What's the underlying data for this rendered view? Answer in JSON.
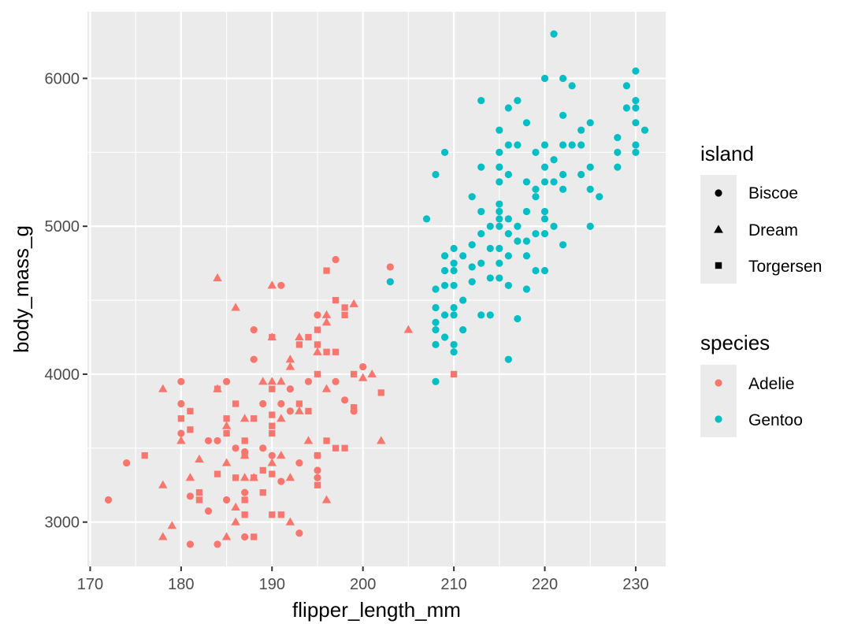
{
  "chart_data": {
    "type": "scatter",
    "title": "",
    "xlabel": "flipper_length_mm",
    "ylabel": "body_mass_g",
    "xlim": [
      169.7,
      233.3
    ],
    "ylim": [
      2700,
      6450
    ],
    "x_ticks": [
      170,
      180,
      190,
      200,
      210,
      220,
      230
    ],
    "y_ticks": [
      3000,
      4000,
      5000,
      6000
    ],
    "grid": true,
    "panel_background": "#ebebeb",
    "gridline_color": "#ffffff",
    "legends": {
      "island": {
        "title": "island",
        "entries": [
          {
            "label": "Biscoe",
            "shape": "circle"
          },
          {
            "label": "Dream",
            "shape": "triangle"
          },
          {
            "label": "Torgersen",
            "shape": "square"
          }
        ]
      },
      "species": {
        "title": "species",
        "entries": [
          {
            "label": "Adelie",
            "color": "#F8766D"
          },
          {
            "label": "Gentoo",
            "color": "#00BFC4"
          }
        ]
      }
    },
    "legend_position": "right",
    "series": [
      {
        "name": "Adelie",
        "color": "#F8766D",
        "points": [
          [
            172,
            3150,
            "Biscoe"
          ],
          [
            174,
            3400,
            "Biscoe"
          ],
          [
            176,
            3450,
            "Torgersen"
          ],
          [
            178,
            3900,
            "Dream"
          ],
          [
            178,
            3250,
            "Dream"
          ],
          [
            178,
            2900,
            "Dream"
          ],
          [
            179,
            2975,
            "Dream"
          ],
          [
            180,
            3950,
            "Biscoe"
          ],
          [
            180,
            3800,
            "Biscoe"
          ],
          [
            180,
            3700,
            "Torgersen"
          ],
          [
            180,
            3600,
            "Biscoe"
          ],
          [
            180,
            3550,
            "Dream"
          ],
          [
            181,
            3750,
            "Torgersen"
          ],
          [
            181,
            3625,
            "Torgersen"
          ],
          [
            181,
            3300,
            "Dream"
          ],
          [
            181,
            3175,
            "Biscoe"
          ],
          [
            181,
            2850,
            "Biscoe"
          ],
          [
            182,
            3200,
            "Torgersen"
          ],
          [
            182,
            3425,
            "Dream"
          ],
          [
            182,
            3150,
            "Torgersen"
          ],
          [
            183,
            3550,
            "Biscoe"
          ],
          [
            183,
            3075,
            "Biscoe"
          ],
          [
            184,
            4650,
            "Dream"
          ],
          [
            184,
            3900,
            "Dream"
          ],
          [
            184,
            3900,
            "Torgersen"
          ],
          [
            184,
            3550,
            "Biscoe"
          ],
          [
            184,
            3325,
            "Torgersen"
          ],
          [
            184,
            2850,
            "Biscoe"
          ],
          [
            185,
            3950,
            "Biscoe"
          ],
          [
            185,
            3650,
            "Dream"
          ],
          [
            185,
            3700,
            "Torgersen"
          ],
          [
            185,
            3600,
            "Torgersen"
          ],
          [
            185,
            3400,
            "Dream"
          ],
          [
            185,
            3150,
            "Biscoe"
          ],
          [
            185,
            2900,
            "Dream"
          ],
          [
            186,
            4450,
            "Dream"
          ],
          [
            186,
            3800,
            "Torgersen"
          ],
          [
            186,
            3500,
            "Biscoe"
          ],
          [
            186,
            3300,
            "Torgersen"
          ],
          [
            186,
            3100,
            "Dream"
          ],
          [
            186,
            3000,
            "Dream"
          ],
          [
            187,
            3700,
            "Dream"
          ],
          [
            187,
            3550,
            "Torgersen"
          ],
          [
            187,
            3450,
            "Dream"
          ],
          [
            187,
            3450,
            "Torgersen"
          ],
          [
            187,
            3300,
            "Dream"
          ],
          [
            187,
            3200,
            "Biscoe"
          ],
          [
            187,
            3150,
            "Torgersen"
          ],
          [
            187,
            3050,
            "Torgersen"
          ],
          [
            187,
            2900,
            "Biscoe"
          ],
          [
            187,
            3475,
            "Biscoe"
          ],
          [
            188,
            4300,
            "Biscoe"
          ],
          [
            188,
            4100,
            "Biscoe"
          ],
          [
            188,
            3700,
            "Torgersen"
          ],
          [
            188,
            3300,
            "Dream"
          ],
          [
            188,
            3300,
            "Torgersen"
          ],
          [
            188,
            2900,
            "Torgersen"
          ],
          [
            189,
            3950,
            "Dream"
          ],
          [
            189,
            3800,
            "Biscoe"
          ],
          [
            189,
            3500,
            "Biscoe"
          ],
          [
            189,
            3350,
            "Torgersen"
          ],
          [
            189,
            3200,
            "Torgersen"
          ],
          [
            190,
            4600,
            "Dream"
          ],
          [
            190,
            4250,
            "Torgersen"
          ],
          [
            190,
            4250,
            "Dream"
          ],
          [
            190,
            3950,
            "Dream"
          ],
          [
            190,
            3900,
            "Torgersen"
          ],
          [
            190,
            3725,
            "Torgersen"
          ],
          [
            190,
            3650,
            "Torgersen"
          ],
          [
            190,
            3600,
            "Torgersen"
          ],
          [
            190,
            3450,
            "Biscoe"
          ],
          [
            190,
            3400,
            "Dream"
          ],
          [
            190,
            3325,
            "Torgersen"
          ],
          [
            190,
            3050,
            "Torgersen"
          ],
          [
            191,
            4600,
            "Biscoe"
          ],
          [
            191,
            3950,
            "Dream"
          ],
          [
            191,
            3800,
            "Biscoe"
          ],
          [
            191,
            3700,
            "Dream"
          ],
          [
            191,
            3450,
            "Dream"
          ],
          [
            191,
            3275,
            "Biscoe"
          ],
          [
            191,
            3050,
            "Torgersen"
          ],
          [
            192,
            4100,
            "Dream"
          ],
          [
            192,
            4050,
            "Dream"
          ],
          [
            192,
            3900,
            "Biscoe"
          ],
          [
            192,
            3750,
            "Biscoe"
          ],
          [
            192,
            3300,
            "Dream"
          ],
          [
            192,
            3000,
            "Dream"
          ],
          [
            193,
            4250,
            "Dream"
          ],
          [
            193,
            4200,
            "Torgersen"
          ],
          [
            193,
            3750,
            "Dream"
          ],
          [
            193,
            3800,
            "Torgersen"
          ],
          [
            193,
            3400,
            "Biscoe"
          ],
          [
            193,
            2925,
            "Biscoe"
          ],
          [
            194,
            4250,
            "Torgersen"
          ],
          [
            194,
            3950,
            "Biscoe"
          ],
          [
            194,
            3750,
            "Torgersen"
          ],
          [
            194,
            3550,
            "Dream"
          ],
          [
            195,
            4400,
            "Biscoe"
          ],
          [
            195,
            4300,
            "Torgersen"
          ],
          [
            195,
            4150,
            "Dream"
          ],
          [
            195,
            4000,
            "Torgersen"
          ],
          [
            195,
            3450,
            "Torgersen"
          ],
          [
            195,
            3450,
            "Biscoe"
          ],
          [
            195,
            3350,
            "Biscoe"
          ],
          [
            195,
            3300,
            "Biscoe"
          ],
          [
            195,
            3250,
            "Torgersen"
          ],
          [
            195,
            4200,
            "Torgersen"
          ],
          [
            196,
            4700,
            "Torgersen"
          ],
          [
            196,
            4400,
            "Dream"
          ],
          [
            196,
            4350,
            "Dream"
          ],
          [
            196,
            4150,
            "Torgersen"
          ],
          [
            196,
            3900,
            "Dream"
          ],
          [
            196,
            3550,
            "Torgersen"
          ],
          [
            196,
            3150,
            "Dream"
          ],
          [
            197,
            4775,
            "Biscoe"
          ],
          [
            197,
            4500,
            "Torgersen"
          ],
          [
            197,
            4150,
            "Torgersen"
          ],
          [
            197,
            3950,
            "Biscoe"
          ],
          [
            197,
            3500,
            "Torgersen"
          ],
          [
            198,
            4450,
            "Torgersen"
          ],
          [
            198,
            4400,
            "Torgersen"
          ],
          [
            198,
            3825,
            "Biscoe"
          ],
          [
            198,
            3500,
            "Torgersen"
          ],
          [
            199,
            4475,
            "Dream"
          ],
          [
            199,
            4000,
            "Torgersen"
          ],
          [
            199,
            3775,
            "Torgersen"
          ],
          [
            199,
            3750,
            "Biscoe"
          ],
          [
            200,
            4050,
            "Biscoe"
          ],
          [
            200,
            3975,
            "Dream"
          ],
          [
            201,
            4000,
            "Dream"
          ],
          [
            202,
            3875,
            "Torgersen"
          ],
          [
            202,
            3550,
            "Dream"
          ],
          [
            203,
            4725,
            "Biscoe"
          ],
          [
            205,
            4300,
            "Dream"
          ],
          [
            210,
            4000,
            "Torgersen"
          ]
        ]
      },
      {
        "name": "Gentoo",
        "color": "#00BFC4",
        "points": [
          [
            203,
            4625
          ],
          [
            207,
            5050
          ],
          [
            208,
            5350
          ],
          [
            208,
            4575
          ],
          [
            208,
            4450
          ],
          [
            208,
            4350
          ],
          [
            208,
            4300
          ],
          [
            208,
            4200
          ],
          [
            208,
            3950
          ],
          [
            209,
            5500
          ],
          [
            209,
            4800
          ],
          [
            209,
            4700
          ],
          [
            209,
            4600
          ],
          [
            209,
            4400
          ],
          [
            209,
            4250
          ],
          [
            210,
            4850
          ],
          [
            210,
            4750
          ],
          [
            210,
            4700
          ],
          [
            210,
            4600
          ],
          [
            210,
            4450
          ],
          [
            210,
            4400
          ],
          [
            210,
            4200
          ],
          [
            210,
            4150
          ],
          [
            211,
            4800
          ],
          [
            211,
            4500
          ],
          [
            211,
            4300
          ],
          [
            212,
            5200
          ],
          [
            212,
            4875
          ],
          [
            212,
            4625
          ],
          [
            212,
            4725
          ],
          [
            213,
            5850
          ],
          [
            213,
            5400
          ],
          [
            213,
            5100
          ],
          [
            213,
            4950
          ],
          [
            213,
            4750
          ],
          [
            213,
            4400
          ],
          [
            214,
            5000
          ],
          [
            214,
            4850
          ],
          [
            214,
            4650
          ],
          [
            214,
            4400
          ],
          [
            215,
            5650
          ],
          [
            215,
            5500
          ],
          [
            215,
            5400
          ],
          [
            215,
            5300
          ],
          [
            215,
            5150
          ],
          [
            215,
            5100
          ],
          [
            215,
            5050
          ],
          [
            215,
            5000
          ],
          [
            215,
            4850
          ],
          [
            215,
            4750
          ],
          [
            215,
            4650
          ],
          [
            216,
            5800
          ],
          [
            216,
            5550
          ],
          [
            216,
            5350
          ],
          [
            216,
            5050
          ],
          [
            216,
            4950
          ],
          [
            216,
            4800
          ],
          [
            216,
            4600
          ],
          [
            216,
            4100
          ],
          [
            217,
            5850
          ],
          [
            217,
            5550
          ],
          [
            217,
            5000
          ],
          [
            217,
            4900
          ],
          [
            217,
            4375
          ],
          [
            218,
            5700
          ],
          [
            218,
            5300
          ],
          [
            218,
            5100
          ],
          [
            218,
            4900
          ],
          [
            218,
            4800
          ],
          [
            218,
            4575
          ],
          [
            219,
            5500
          ],
          [
            219,
            5250
          ],
          [
            219,
            5200
          ],
          [
            219,
            4950
          ],
          [
            219,
            4700
          ],
          [
            220,
            6000
          ],
          [
            220,
            5550
          ],
          [
            220,
            5400
          ],
          [
            220,
            5300
          ],
          [
            220,
            5100
          ],
          [
            220,
            5050
          ],
          [
            220,
            4950
          ],
          [
            220,
            4700
          ],
          [
            221,
            6300
          ],
          [
            221,
            5450
          ],
          [
            221,
            5300
          ],
          [
            221,
            5000
          ],
          [
            222,
            6000
          ],
          [
            222,
            5750
          ],
          [
            222,
            5550
          ],
          [
            222,
            5350
          ],
          [
            222,
            5250
          ],
          [
            222,
            4875
          ],
          [
            223,
            5950
          ],
          [
            223,
            5550
          ],
          [
            224,
            5650
          ],
          [
            224,
            5550
          ],
          [
            224,
            5350
          ],
          [
            225,
            5700
          ],
          [
            225,
            5400
          ],
          [
            225,
            5250
          ],
          [
            225,
            5000
          ],
          [
            226,
            5200
          ],
          [
            228,
            5600
          ],
          [
            228,
            5500
          ],
          [
            228,
            5400
          ],
          [
            229,
            5950
          ],
          [
            229,
            5800
          ],
          [
            230,
            6050
          ],
          [
            230,
            5850
          ],
          [
            230,
            5800
          ],
          [
            230,
            5700
          ],
          [
            230,
            5550
          ],
          [
            230,
            5500
          ],
          [
            231,
            5650
          ]
        ]
      }
    ]
  }
}
